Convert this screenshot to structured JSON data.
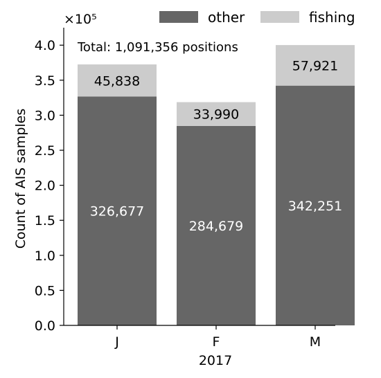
{
  "chart_data": {
    "type": "bar",
    "stacked": true,
    "categories": [
      "J",
      "F",
      "M"
    ],
    "series": [
      {
        "name": "other",
        "values": [
          326677,
          284679,
          342251
        ],
        "color": "#666666",
        "label_color": "#ffffff"
      },
      {
        "name": "fishing",
        "values": [
          45838,
          33990,
          57921
        ],
        "color": "#cccccc",
        "label_color": "#000000"
      }
    ],
    "data_labels": {
      "other": [
        "326,677",
        "284,679",
        "342,251"
      ],
      "fishing": [
        "45,838",
        "33,990",
        "57,921"
      ]
    },
    "annotation": "Total: 1,091,356 positions",
    "xlabel": "2017",
    "ylabel": "Count of AIS samples",
    "scale_label": "×10⁵",
    "yticks": [
      "0.0",
      "0.5",
      "1.0",
      "1.5",
      "2.0",
      "2.5",
      "3.0",
      "3.5",
      "4.0"
    ],
    "ytick_values": [
      0,
      50000,
      100000,
      150000,
      200000,
      250000,
      300000,
      350000,
      400000
    ],
    "ylim": [
      0,
      421000
    ],
    "legend_position": "top-right",
    "grid": false
  }
}
